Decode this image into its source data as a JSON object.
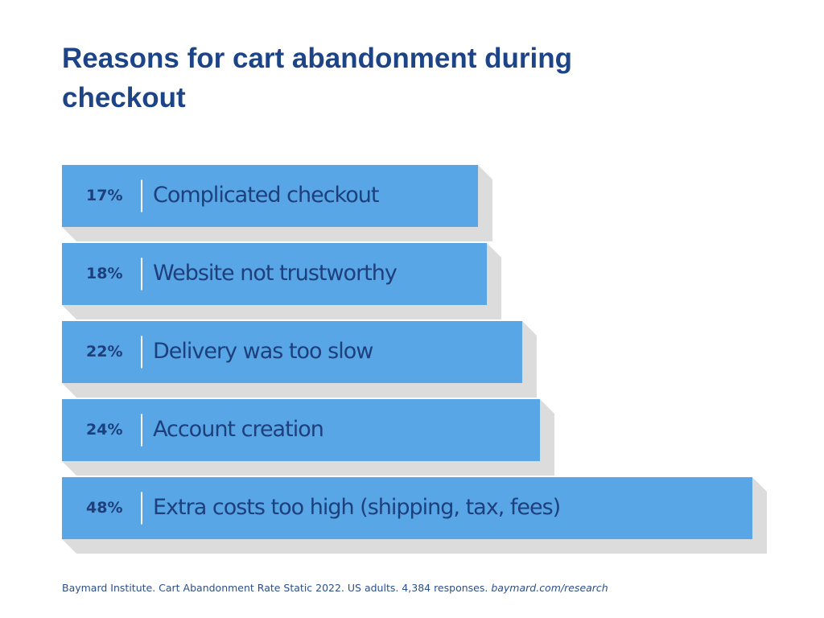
{
  "chart_data": {
    "type": "bar",
    "orientation": "horizontal",
    "title": "Reasons for cart abandonment during",
    "subtitle": "checkout",
    "categories": [
      "Complicated checkout",
      "Website not trustworthy",
      "Delivery was too slow",
      "Account creation",
      "Extra costs too high (shipping, tax, fees)"
    ],
    "values": [
      17,
      18,
      22,
      24,
      48
    ],
    "value_labels": [
      "17%",
      "18%",
      "22%",
      "24%",
      "48%"
    ],
    "color": "#58a6e6",
    "source": "Baymard Institute. Cart Abandonment Rate Static 2022. US adults. 4,384 responses.",
    "source_link": "baymard.com/research"
  }
}
